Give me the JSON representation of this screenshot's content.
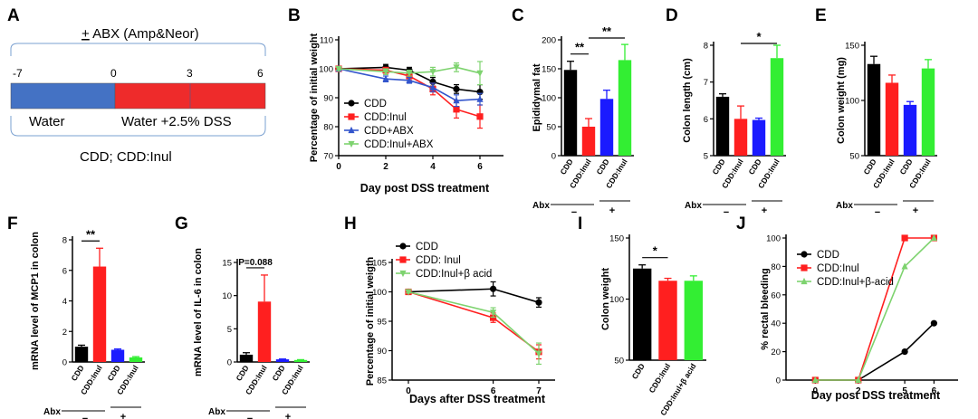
{
  "colors": {
    "black": "#000000",
    "red": "#ff1f1f",
    "blue": "#1a1aff",
    "green": "#33ee33",
    "green_line": "#7ed36f",
    "bar_blue": "#4472c4",
    "bar_red": "#ee2b2b"
  },
  "panel_labels": [
    "A",
    "B",
    "C",
    "D",
    "E",
    "F",
    "G",
    "H",
    "I",
    "J"
  ],
  "panelA": {
    "abx_prefix": "+",
    "abx_text": " ABX (Amp&Neor)",
    "ticks": [
      "-7",
      "0",
      "3",
      "6"
    ],
    "segment1": "Water",
    "segment2": "Water +2.5% DSS",
    "groups": "CDD; CDD:Inul"
  },
  "chart_data": [
    {
      "id": "B",
      "type": "line",
      "title": "",
      "xlabel": "Day post DSS treatment",
      "ylabel": "Percentage of initial weight",
      "xlim": [
        0,
        7
      ],
      "ylim": [
        70,
        110
      ],
      "xticks": [
        0,
        2,
        4,
        6
      ],
      "yticks": [
        70,
        80,
        90,
        100,
        110
      ],
      "series": [
        {
          "name": "CDD",
          "color": "#000000",
          "marker": "circle",
          "x": [
            0,
            2,
            3,
            4,
            5,
            6
          ],
          "y": [
            100,
            100.5,
            99.5,
            95.5,
            93,
            92
          ],
          "err": [
            0.5,
            1,
            1,
            1.5,
            1.5,
            2.5
          ]
        },
        {
          "name": "CDD:Inul",
          "color": "#ff1f1f",
          "marker": "square",
          "x": [
            0,
            2,
            3,
            4,
            5,
            6
          ],
          "y": [
            100,
            99.5,
            97.5,
            93,
            86,
            83.5
          ],
          "err": [
            0.5,
            1,
            1.5,
            2,
            3,
            4
          ]
        },
        {
          "name": "CDD+ABX",
          "color": "#3355cc",
          "marker": "triangle",
          "x": [
            0,
            2,
            3,
            4,
            5,
            6
          ],
          "y": [
            100,
            96.5,
            96,
            93.5,
            89,
            89.5
          ],
          "err": [
            0.5,
            1,
            1,
            1.5,
            2,
            2
          ]
        },
        {
          "name": "CDD:Inul+ABX",
          "color": "#7ed36f",
          "marker": "triangledown",
          "x": [
            0,
            2,
            3,
            4,
            5,
            6
          ],
          "y": [
            100,
            99,
            98.5,
            99,
            100.5,
            98.5
          ],
          "err": [
            0.5,
            1,
            1,
            1.5,
            1.5,
            4
          ]
        }
      ]
    },
    {
      "id": "C",
      "type": "bar",
      "ylabel": "Epididymal fat",
      "categories": [
        "CDD",
        "CDD:Inul",
        "CDD",
        "CDD:Inul"
      ],
      "values": [
        148,
        50,
        98,
        165
      ],
      "errors": [
        15,
        14,
        15,
        27
      ],
      "colors": [
        "#000000",
        "#ff1f1f",
        "#1a1aff",
        "#33ee33"
      ],
      "ylim": [
        0,
        200
      ],
      "yticks": [
        0,
        50,
        100,
        150,
        200
      ],
      "abx_label": "Abx",
      "abx_minus": "−",
      "abx_plus": "+",
      "sig": [
        {
          "from": 0,
          "to": 1,
          "text": "**"
        },
        {
          "from": 1,
          "to": 3,
          "text": "**"
        }
      ]
    },
    {
      "id": "D",
      "type": "bar",
      "ylabel": "Colon length (cm)",
      "categories": [
        "CDD",
        "CDD:Inul",
        "CDD",
        "CDD:Inul"
      ],
      "values": [
        6.6,
        6.0,
        5.97,
        7.65
      ],
      "errors": [
        0.08,
        0.35,
        0.05,
        0.35
      ],
      "colors": [
        "#000000",
        "#ff1f1f",
        "#1a1aff",
        "#33ee33"
      ],
      "ylim": [
        5,
        8
      ],
      "yticks": [
        5,
        6,
        7,
        8
      ],
      "abx_label": "Abx",
      "abx_minus": "−",
      "abx_plus": "+",
      "sig": [
        {
          "from": 1,
          "to": 3,
          "text": "*"
        }
      ]
    },
    {
      "id": "E",
      "type": "bar",
      "ylabel": "Colon weight (mg)",
      "categories": [
        "CDD",
        "CDD:Inul",
        "CDD",
        "CDD:Inul"
      ],
      "values": [
        133,
        116,
        96,
        129
      ],
      "errors": [
        7,
        7,
        3,
        8
      ],
      "colors": [
        "#000000",
        "#ff1f1f",
        "#1a1aff",
        "#33ee33"
      ],
      "ylim": [
        50,
        150
      ],
      "yticks": [
        50,
        100,
        150
      ],
      "abx_label": "Abx",
      "abx_minus": "−",
      "abx_plus": "+",
      "sig": []
    },
    {
      "id": "F",
      "type": "bar",
      "ylabel": "mRNA level of MCP1 in colon",
      "categories": [
        "CDD",
        "CDD:Inul",
        "CDD",
        "CDD:Inul"
      ],
      "values": [
        1.0,
        6.25,
        0.8,
        0.3
      ],
      "errors": [
        0.1,
        1.2,
        0.05,
        0.05
      ],
      "colors": [
        "#000000",
        "#ff1f1f",
        "#1a1aff",
        "#33ee33"
      ],
      "ylim": [
        0,
        8
      ],
      "yticks": [
        0,
        2,
        4,
        6,
        8
      ],
      "abx_label": "Abx",
      "abx_minus": "−",
      "abx_plus": "+",
      "sig": [
        {
          "from": 0,
          "to": 1,
          "text": "**"
        }
      ]
    },
    {
      "id": "G",
      "type": "bar",
      "ylabel": "mRNA level of IL-6 in colon",
      "categories": [
        "CDD",
        "CDD:Inul",
        "CDD",
        "CDD:Inul"
      ],
      "values": [
        1.1,
        9.1,
        0.4,
        0.3
      ],
      "errors": [
        0.3,
        4.0,
        0.05,
        0.05
      ],
      "colors": [
        "#000000",
        "#ff1f1f",
        "#1a1aff",
        "#33ee33"
      ],
      "ylim": [
        0,
        15
      ],
      "yticks": [
        0,
        5,
        10,
        15
      ],
      "abx_label": "Abx",
      "abx_minus": "−",
      "abx_plus": "+",
      "sig": [
        {
          "from": 0,
          "to": 1,
          "text": "P=0.088"
        }
      ]
    },
    {
      "id": "H",
      "type": "line",
      "xlabel": "Days after DSS treatment",
      "ylabel": "Percentage of initial weigth",
      "xlim": [
        -0.5,
        7.5
      ],
      "ylim": [
        85,
        105
      ],
      "xticks": [
        0,
        6,
        7
      ],
      "yticks": [
        85,
        90,
        95,
        100,
        105
      ],
      "xmap": [
        [
          0,
          0.1
        ],
        [
          6,
          0.62
        ],
        [
          7,
          0.9
        ]
      ],
      "series": [
        {
          "name": "CDD",
          "color": "#000000",
          "marker": "circle",
          "x": [
            0,
            6,
            7
          ],
          "y": [
            100,
            100.5,
            98.2
          ],
          "err": [
            0.2,
            1.2,
            0.8
          ]
        },
        {
          "name": "CDD: Inul",
          "color": "#ff1f1f",
          "marker": "square",
          "x": [
            0,
            6,
            7
          ],
          "y": [
            100,
            95.6,
            89.8
          ],
          "err": [
            0.2,
            0.8,
            1.2
          ]
        },
        {
          "name": "CDD:Inul+β acid",
          "color": "#7ed36f",
          "marker": "triangledown",
          "x": [
            0,
            6,
            7
          ],
          "y": [
            100,
            96.5,
            89.5
          ],
          "err": [
            0.2,
            0.8,
            1.8
          ]
        }
      ]
    },
    {
      "id": "I",
      "type": "bar",
      "ylabel": "Colon weight",
      "categories": [
        "CDD",
        "CDD:Inul",
        "CDD:Inul+β acid"
      ],
      "values": [
        125,
        115,
        115
      ],
      "errors": [
        3,
        2,
        4
      ],
      "colors": [
        "#000000",
        "#ff1f1f",
        "#33ee33"
      ],
      "ylim": [
        50,
        150
      ],
      "yticks": [
        50,
        100,
        150
      ],
      "sig": [
        {
          "from": 0,
          "to": 1,
          "text": "*"
        }
      ]
    },
    {
      "id": "J",
      "type": "line",
      "xlabel": "Day post DSS treatment",
      "ylabel": "% rectal bleeding",
      "xlim": [
        -0.5,
        6.5
      ],
      "ylim": [
        0,
        100
      ],
      "xticks": [
        0,
        2,
        5,
        6
      ],
      "yticks": [
        0,
        20,
        40,
        60,
        80,
        100
      ],
      "xmap": [
        [
          0,
          0.17
        ],
        [
          2,
          0.42
        ],
        [
          5,
          0.69
        ],
        [
          6,
          0.86
        ]
      ],
      "series": [
        {
          "name": "CDD",
          "color": "#000000",
          "marker": "circle",
          "x": [
            0,
            2,
            5,
            6
          ],
          "y": [
            0,
            0,
            20,
            40
          ]
        },
        {
          "name": "CDD:Inul",
          "color": "#ff1f1f",
          "marker": "square",
          "x": [
            0,
            2,
            5,
            6
          ],
          "y": [
            0,
            0,
            100,
            100
          ]
        },
        {
          "name": "CDD:Inul+β-acid",
          "color": "#7ed36f",
          "marker": "triangle",
          "x": [
            0,
            2,
            5,
            6
          ],
          "y": [
            0,
            0,
            80,
            100
          ]
        }
      ]
    }
  ]
}
